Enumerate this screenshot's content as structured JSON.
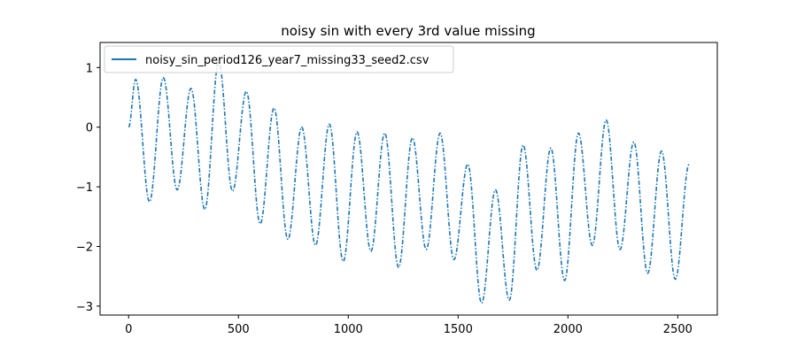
{
  "chart_data": {
    "type": "line",
    "title": "noisy sin with every 3rd value missing",
    "xlabel": "",
    "ylabel": "",
    "xlim": [
      -130,
      2680
    ],
    "ylim": [
      -3.15,
      1.42
    ],
    "xticks": [
      0,
      500,
      1000,
      1500,
      2000,
      2500
    ],
    "yticks": [
      1,
      0,
      -1,
      -2,
      -3
    ],
    "grid": false,
    "legend_position": "top-left",
    "series": [
      {
        "name": "noisy_sin_period126_year7_missing33_seed2.csv",
        "color": "#1f77b4",
        "linestyle": "dashdot",
        "period": 126,
        "x_range": [
          0,
          2555
        ],
        "peaks": [
          {
            "x": 32,
            "y": 0.8
          },
          {
            "x": 158,
            "y": 0.83
          },
          {
            "x": 284,
            "y": 0.65
          },
          {
            "x": 410,
            "y": 1.1
          },
          {
            "x": 536,
            "y": 0.6
          },
          {
            "x": 662,
            "y": 0.32
          },
          {
            "x": 788,
            "y": 0.0
          },
          {
            "x": 914,
            "y": 0.05
          },
          {
            "x": 1040,
            "y": -0.08
          },
          {
            "x": 1166,
            "y": -0.1
          },
          {
            "x": 1292,
            "y": -0.18
          },
          {
            "x": 1418,
            "y": -0.1
          },
          {
            "x": 1544,
            "y": -0.62
          },
          {
            "x": 1670,
            "y": -1.05
          },
          {
            "x": 1796,
            "y": -0.3
          },
          {
            "x": 1922,
            "y": -0.35
          },
          {
            "x": 2048,
            "y": -0.1
          },
          {
            "x": 2174,
            "y": 0.12
          },
          {
            "x": 2300,
            "y": -0.25
          },
          {
            "x": 2426,
            "y": -0.4
          },
          {
            "x": 2552,
            "y": -0.62
          }
        ],
        "troughs": [
          {
            "x": 95,
            "y": -1.25
          },
          {
            "x": 221,
            "y": -1.05
          },
          {
            "x": 347,
            "y": -1.38
          },
          {
            "x": 473,
            "y": -1.07
          },
          {
            "x": 599,
            "y": -1.62
          },
          {
            "x": 725,
            "y": -1.88
          },
          {
            "x": 851,
            "y": -1.98
          },
          {
            "x": 977,
            "y": -2.25
          },
          {
            "x": 1103,
            "y": -2.08
          },
          {
            "x": 1229,
            "y": -2.35
          },
          {
            "x": 1355,
            "y": -2.05
          },
          {
            "x": 1481,
            "y": -2.22
          },
          {
            "x": 1607,
            "y": -2.95
          },
          {
            "x": 1733,
            "y": -2.9
          },
          {
            "x": 1859,
            "y": -2.4
          },
          {
            "x": 1985,
            "y": -2.57
          },
          {
            "x": 2111,
            "y": -1.98
          },
          {
            "x": 2237,
            "y": -2.05
          },
          {
            "x": 2363,
            "y": -2.45
          },
          {
            "x": 2489,
            "y": -2.55
          }
        ]
      }
    ]
  }
}
